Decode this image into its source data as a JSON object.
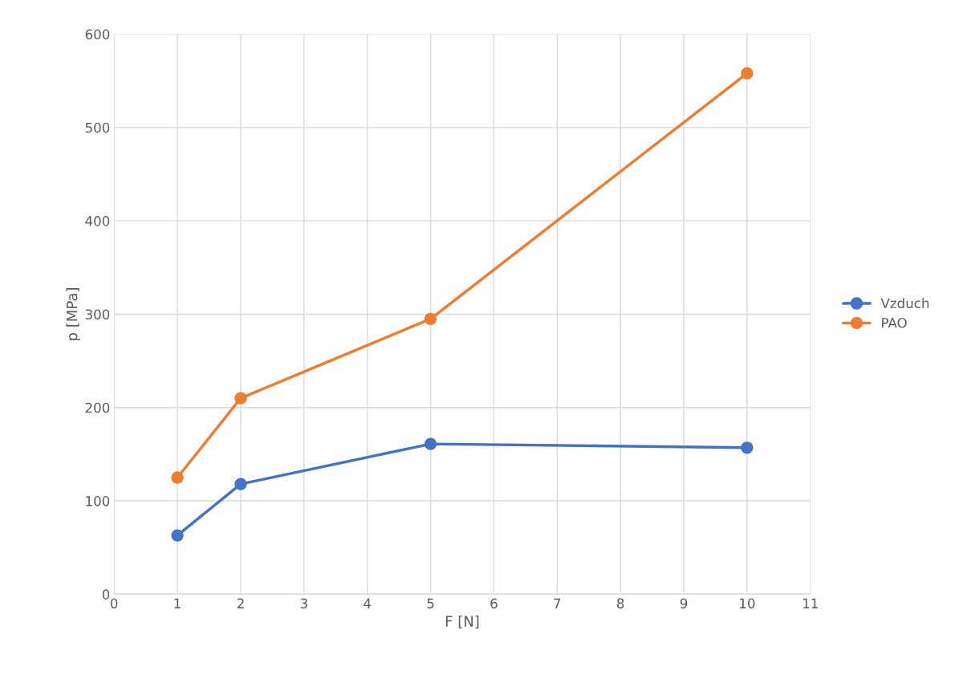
{
  "chart_data": {
    "type": "line",
    "xlabel": "F [N]",
    "ylabel": "p [MPa]",
    "x": [
      1,
      2,
      5,
      10
    ],
    "series": [
      {
        "name": "Vzduch",
        "color": "#4472c4",
        "values": [
          63,
          118,
          161,
          157
        ]
      },
      {
        "name": "PAO",
        "color": "#ed7d31",
        "values": [
          125,
          210,
          295,
          558
        ]
      }
    ],
    "xlim": [
      0,
      11
    ],
    "xticks": [
      0,
      1,
      2,
      3,
      4,
      5,
      6,
      7,
      8,
      9,
      10,
      11
    ],
    "ylim": [
      0,
      600
    ],
    "yticks": [
      0,
      100,
      200,
      300,
      400,
      500,
      600
    ],
    "grid": true,
    "legend": "right",
    "marker": "circle",
    "line_style": "solid"
  }
}
